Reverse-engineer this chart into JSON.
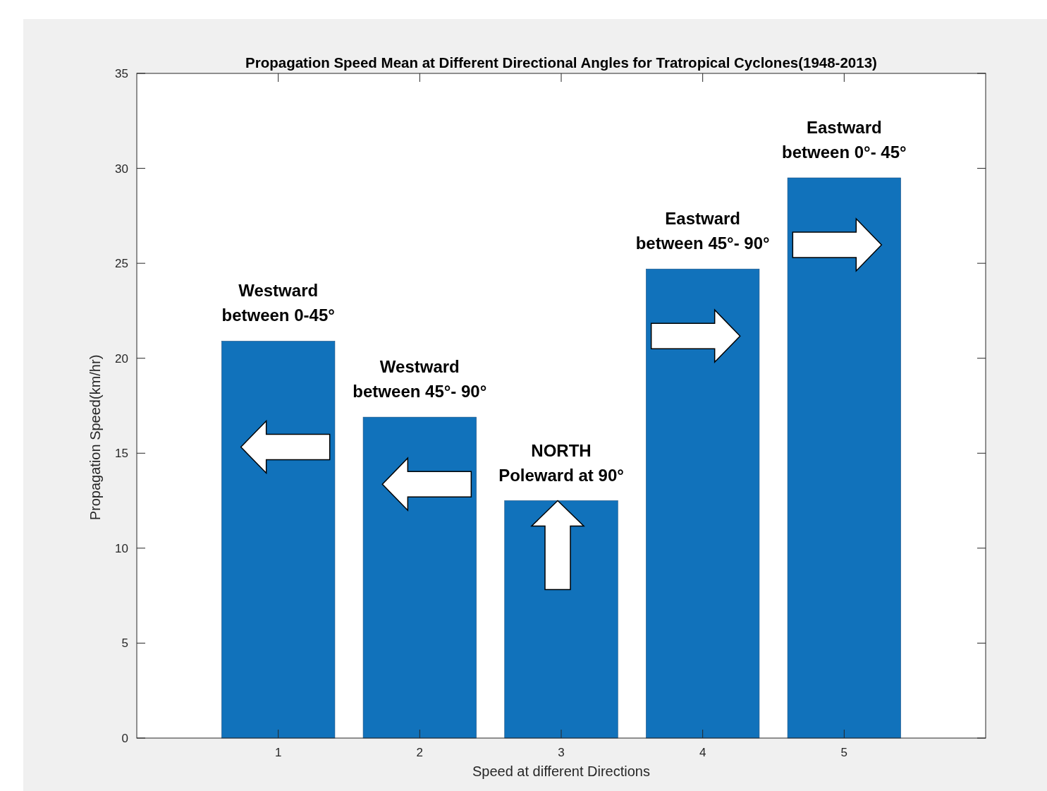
{
  "chart_data": {
    "type": "bar",
    "title": "Propagation Speed Mean at Different Directional Angles for Tratropical Cyclones(1948-2013)",
    "xlabel": "Speed at different Directions",
    "ylabel": "Propagation Speed(km/hr)",
    "categories": [
      "1",
      "2",
      "3",
      "4",
      "5"
    ],
    "values": [
      20.9,
      16.9,
      12.5,
      24.7,
      29.5
    ],
    "color": "#1172bb",
    "ylim": [
      0,
      35
    ],
    "yticks": [
      0,
      5,
      10,
      15,
      20,
      25,
      30,
      35
    ],
    "grid": false,
    "annotations": [
      {
        "text": "Westward\nbetween 0-45°",
        "x": "1",
        "y": 20.9
      },
      {
        "text": "Westward\nbetween 45°- 90°",
        "x": "2",
        "y": 16.9
      },
      {
        "text": "NORTH\nPoleward at 90°",
        "x": "3",
        "y": 12.5
      },
      {
        "text": "Eastward\nbetween 45°- 90°",
        "x": "4",
        "y": 24.7
      },
      {
        "text": "Eastward\nbetween 0°- 45°",
        "x": "5",
        "y": 29.5
      }
    ]
  }
}
